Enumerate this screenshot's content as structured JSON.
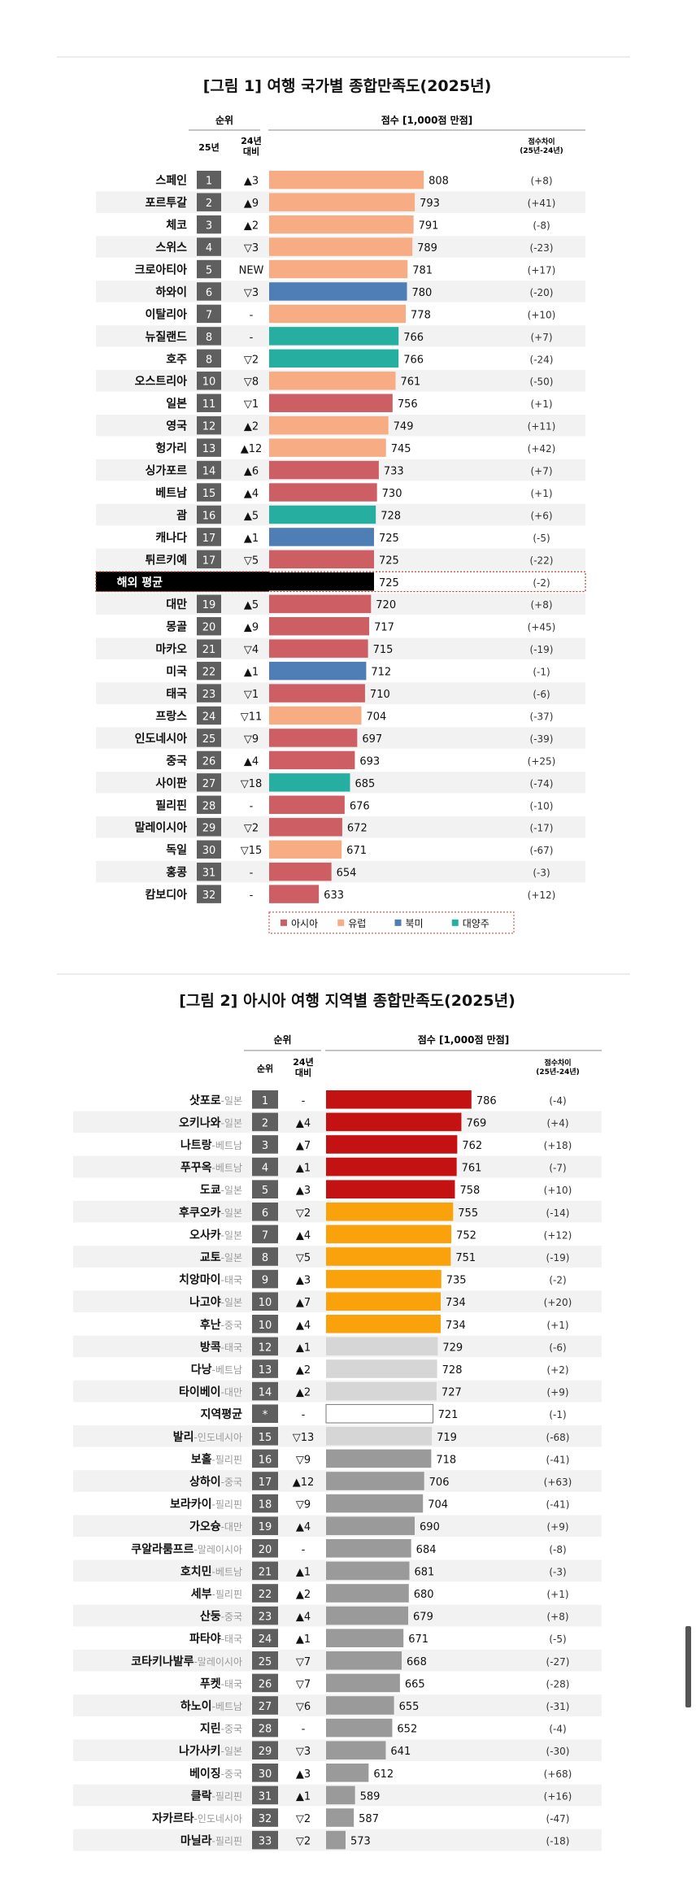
{
  "chart_data": [
    {
      "type": "bar",
      "title": "[그림 1] 여행 국가별 종합만족도(2025년)",
      "rank_header": "순위",
      "col_rank_label": "25년",
      "col_change_label": [
        "24년",
        "대비"
      ],
      "score_header": "점수 [1,000점 만점]",
      "diff_header": [
        "점수차이",
        "(25년-24년)"
      ],
      "xlim": [
        550,
        820
      ],
      "legend_position": "bottom",
      "legend": [
        {
          "name": "아시아",
          "color": "#cc5e64"
        },
        {
          "name": "유럽",
          "color": "#f7ac84"
        },
        {
          "name": "북미",
          "color": "#4f7db5"
        },
        {
          "name": "대양주",
          "color": "#26aea1"
        }
      ],
      "rows": [
        {
          "name": "스페인",
          "rank": "1",
          "change": "▲3",
          "score": 808,
          "diff": "(+8)",
          "color": "#f7ac84"
        },
        {
          "name": "포르투갈",
          "rank": "2",
          "change": "▲9",
          "score": 793,
          "diff": "(+41)",
          "color": "#f7ac84"
        },
        {
          "name": "체코",
          "rank": "3",
          "change": "▲2",
          "score": 791,
          "diff": "(-8)",
          "color": "#f7ac84"
        },
        {
          "name": "스위스",
          "rank": "4",
          "change": "▽3",
          "score": 789,
          "diff": "(-23)",
          "color": "#f7ac84"
        },
        {
          "name": "크로아티아",
          "rank": "5",
          "change": "NEW",
          "score": 781,
          "diff": "(+17)",
          "color": "#f7ac84"
        },
        {
          "name": "하와이",
          "rank": "6",
          "change": "▽3",
          "score": 780,
          "diff": "(-20)",
          "color": "#4f7db5"
        },
        {
          "name": "이탈리아",
          "rank": "7",
          "change": "-",
          "score": 778,
          "diff": "(+10)",
          "color": "#f7ac84"
        },
        {
          "name": "뉴질랜드",
          "rank": "8",
          "change": "-",
          "score": 766,
          "diff": "(+7)",
          "color": "#26aea1"
        },
        {
          "name": "호주",
          "rank": "8",
          "change": "▽2",
          "score": 766,
          "diff": "(-24)",
          "color": "#26aea1"
        },
        {
          "name": "오스트리아",
          "rank": "10",
          "change": "▽8",
          "score": 761,
          "diff": "(-50)",
          "color": "#f7ac84"
        },
        {
          "name": "일본",
          "rank": "11",
          "change": "▽1",
          "score": 756,
          "diff": "(+1)",
          "color": "#cc5e64"
        },
        {
          "name": "영국",
          "rank": "12",
          "change": "▲2",
          "score": 749,
          "diff": "(+11)",
          "color": "#f7ac84"
        },
        {
          "name": "헝가리",
          "rank": "13",
          "change": "▲12",
          "score": 745,
          "diff": "(+42)",
          "color": "#f7ac84"
        },
        {
          "name": "싱가포르",
          "rank": "14",
          "change": "▲6",
          "score": 733,
          "diff": "(+7)",
          "color": "#cc5e64"
        },
        {
          "name": "베트남",
          "rank": "15",
          "change": "▲4",
          "score": 730,
          "diff": "(+1)",
          "color": "#cc5e64"
        },
        {
          "name": "괌",
          "rank": "16",
          "change": "▲5",
          "score": 728,
          "diff": "(+6)",
          "color": "#26aea1"
        },
        {
          "name": "캐나다",
          "rank": "17",
          "change": "▲1",
          "score": 725,
          "diff": "(-5)",
          "color": "#4f7db5"
        },
        {
          "name": "튀르키예",
          "rank": "17",
          "change": "▽5",
          "score": 725,
          "diff": "(-22)",
          "color": "#cc5e64"
        },
        {
          "name": "해외 평균",
          "rank": "",
          "change": "",
          "score": 725,
          "diff": "(-2)",
          "color": "#000000",
          "average": true
        },
        {
          "name": "대만",
          "rank": "19",
          "change": "▲5",
          "score": 720,
          "diff": "(+8)",
          "color": "#cc5e64"
        },
        {
          "name": "몽골",
          "rank": "20",
          "change": "▲9",
          "score": 717,
          "diff": "(+45)",
          "color": "#cc5e64"
        },
        {
          "name": "마카오",
          "rank": "21",
          "change": "▽4",
          "score": 715,
          "diff": "(-19)",
          "color": "#cc5e64"
        },
        {
          "name": "미국",
          "rank": "22",
          "change": "▲1",
          "score": 712,
          "diff": "(-1)",
          "color": "#4f7db5"
        },
        {
          "name": "태국",
          "rank": "23",
          "change": "▽1",
          "score": 710,
          "diff": "(-6)",
          "color": "#cc5e64"
        },
        {
          "name": "프랑스",
          "rank": "24",
          "change": "▽11",
          "score": 704,
          "diff": "(-37)",
          "color": "#f7ac84"
        },
        {
          "name": "인도네시아",
          "rank": "25",
          "change": "▽9",
          "score": 697,
          "diff": "(-39)",
          "color": "#cc5e64"
        },
        {
          "name": "중국",
          "rank": "26",
          "change": "▲4",
          "score": 693,
          "diff": "(+25)",
          "color": "#cc5e64"
        },
        {
          "name": "사이판",
          "rank": "27",
          "change": "▽18",
          "score": 685,
          "diff": "(-74)",
          "color": "#26aea1"
        },
        {
          "name": "필리핀",
          "rank": "28",
          "change": "-",
          "score": 676,
          "diff": "(-10)",
          "color": "#cc5e64"
        },
        {
          "name": "말레이시아",
          "rank": "29",
          "change": "▽2",
          "score": 672,
          "diff": "(-17)",
          "color": "#cc5e64"
        },
        {
          "name": "독일",
          "rank": "30",
          "change": "▽15",
          "score": 671,
          "diff": "(-67)",
          "color": "#f7ac84"
        },
        {
          "name": "홍콩",
          "rank": "31",
          "change": "-",
          "score": 654,
          "diff": "(-3)",
          "color": "#cc5e64"
        },
        {
          "name": "캄보디아",
          "rank": "32",
          "change": "-",
          "score": 633,
          "diff": "(+12)",
          "color": "#cc5e64"
        }
      ]
    },
    {
      "type": "bar",
      "title": "[그림 2] 아시아 여행 지역별 종합만족도(2025년)",
      "rank_header": "순위",
      "col_change_label": [
        "24년",
        "대비"
      ],
      "score_header": "점수 [1,000점 만점]",
      "diff_header": [
        "점수차이",
        "(25년-24년)"
      ],
      "xlim": [
        540,
        800
      ],
      "rows": [
        {
          "name": "삿포로",
          "region": "-일본",
          "rank": "1",
          "change": "-",
          "score": 786,
          "diff": "(-4)",
          "color": "#c41212"
        },
        {
          "name": "오키나와",
          "region": "-일본",
          "rank": "2",
          "change": "▲4",
          "score": 769,
          "diff": "(+4)",
          "color": "#c41212"
        },
        {
          "name": "나트랑",
          "region": "-베트남",
          "rank": "3",
          "change": "▲7",
          "score": 762,
          "diff": "(+18)",
          "color": "#c41212"
        },
        {
          "name": "푸꾸옥",
          "region": "-베트남",
          "rank": "4",
          "change": "▲1",
          "score": 761,
          "diff": "(-7)",
          "color": "#c41212"
        },
        {
          "name": "도쿄",
          "region": "-일본",
          "rank": "5",
          "change": "▲3",
          "score": 758,
          "diff": "(+10)",
          "color": "#c41212"
        },
        {
          "name": "후쿠오카",
          "region": "-일본",
          "rank": "6",
          "change": "▽2",
          "score": 755,
          "diff": "(-14)",
          "color": "#f9a20c"
        },
        {
          "name": "오사카",
          "region": "-일본",
          "rank": "7",
          "change": "▲4",
          "score": 752,
          "diff": "(+12)",
          "color": "#f9a20c"
        },
        {
          "name": "교토",
          "region": "-일본",
          "rank": "8",
          "change": "▽5",
          "score": 751,
          "diff": "(-19)",
          "color": "#f9a20c"
        },
        {
          "name": "치앙마이",
          "region": "-태국",
          "rank": "9",
          "change": "▲3",
          "score": 735,
          "diff": "(-2)",
          "color": "#f9a20c"
        },
        {
          "name": "나고야",
          "region": "-일본",
          "rank": "10",
          "change": "▲7",
          "score": 734,
          "diff": "(+20)",
          "color": "#f9a20c"
        },
        {
          "name": "후난",
          "region": "-중국",
          "rank": "10",
          "change": "▲4",
          "score": 734,
          "diff": "(+1)",
          "color": "#f9a20c"
        },
        {
          "name": "방콕",
          "region": "-태국",
          "rank": "12",
          "change": "▲1",
          "score": 729,
          "diff": "(-6)",
          "color": "#d6d6d6"
        },
        {
          "name": "다낭",
          "region": "-베트남",
          "rank": "13",
          "change": "▲2",
          "score": 728,
          "diff": "(+2)",
          "color": "#d6d6d6"
        },
        {
          "name": "타이베이",
          "region": "-대만",
          "rank": "14",
          "change": "▲2",
          "score": 727,
          "diff": "(+9)",
          "color": "#d6d6d6"
        },
        {
          "name": "지역평균",
          "region": "",
          "rank": "*",
          "change": "-",
          "score": 721,
          "diff": "(-1)",
          "color": "#ffffff",
          "average": true
        },
        {
          "name": "발리",
          "region": "-인도네시아",
          "rank": "15",
          "change": "▽13",
          "score": 719,
          "diff": "(-68)",
          "color": "#d6d6d6"
        },
        {
          "name": "보홀",
          "region": "-필리핀",
          "rank": "16",
          "change": "▽9",
          "score": 718,
          "diff": "(-41)",
          "color": "#9a9a9a"
        },
        {
          "name": "상하이",
          "region": "-중국",
          "rank": "17",
          "change": "▲12",
          "score": 706,
          "diff": "(+63)",
          "color": "#9a9a9a"
        },
        {
          "name": "보라카이",
          "region": "-필리핀",
          "rank": "18",
          "change": "▽9",
          "score": 704,
          "diff": "(-41)",
          "color": "#9a9a9a"
        },
        {
          "name": "가오슝",
          "region": "-대만",
          "rank": "19",
          "change": "▲4",
          "score": 690,
          "diff": "(+9)",
          "color": "#9a9a9a"
        },
        {
          "name": "쿠알라룸프르",
          "region": "-말레이시아",
          "rank": "20",
          "change": "-",
          "score": 684,
          "diff": "(-8)",
          "color": "#9a9a9a"
        },
        {
          "name": "호치민",
          "region": "-베트남",
          "rank": "21",
          "change": "▲1",
          "score": 681,
          "diff": "(-3)",
          "color": "#9a9a9a"
        },
        {
          "name": "세부",
          "region": "-필리핀",
          "rank": "22",
          "change": "▲2",
          "score": 680,
          "diff": "(+1)",
          "color": "#9a9a9a"
        },
        {
          "name": "산둥",
          "region": "-중국",
          "rank": "23",
          "change": "▲4",
          "score": 679,
          "diff": "(+8)",
          "color": "#9a9a9a"
        },
        {
          "name": "파타야",
          "region": "-태국",
          "rank": "24",
          "change": "▲1",
          "score": 671,
          "diff": "(-5)",
          "color": "#9a9a9a"
        },
        {
          "name": "코타키나발루",
          "region": "-말레이시아",
          "rank": "25",
          "change": "▽7",
          "score": 668,
          "diff": "(-27)",
          "color": "#9a9a9a"
        },
        {
          "name": "푸켓",
          "region": "-태국",
          "rank": "26",
          "change": "▽7",
          "score": 665,
          "diff": "(-28)",
          "color": "#9a9a9a"
        },
        {
          "name": "하노이",
          "region": "-베트남",
          "rank": "27",
          "change": "▽6",
          "score": 655,
          "diff": "(-31)",
          "color": "#9a9a9a"
        },
        {
          "name": "지린",
          "region": "-중국",
          "rank": "28",
          "change": "-",
          "score": 652,
          "diff": "(-4)",
          "color": "#9a9a9a"
        },
        {
          "name": "나가사키",
          "region": "-일본",
          "rank": "29",
          "change": "▽3",
          "score": 641,
          "diff": "(-30)",
          "color": "#9a9a9a"
        },
        {
          "name": "베이징",
          "region": "-중국",
          "rank": "30",
          "change": "▲3",
          "score": 612,
          "diff": "(+68)",
          "color": "#9a9a9a"
        },
        {
          "name": "클락",
          "region": "-필리핀",
          "rank": "31",
          "change": "▲1",
          "score": 589,
          "diff": "(+16)",
          "color": "#9a9a9a"
        },
        {
          "name": "자카르타",
          "region": "-인도네시아",
          "rank": "32",
          "change": "▽2",
          "score": 587,
          "diff": "(-47)",
          "color": "#9a9a9a"
        },
        {
          "name": "마닐라",
          "region": "-필리핀",
          "rank": "33",
          "change": "▽2",
          "score": 573,
          "diff": "(-18)",
          "color": "#9a9a9a"
        }
      ]
    }
  ]
}
